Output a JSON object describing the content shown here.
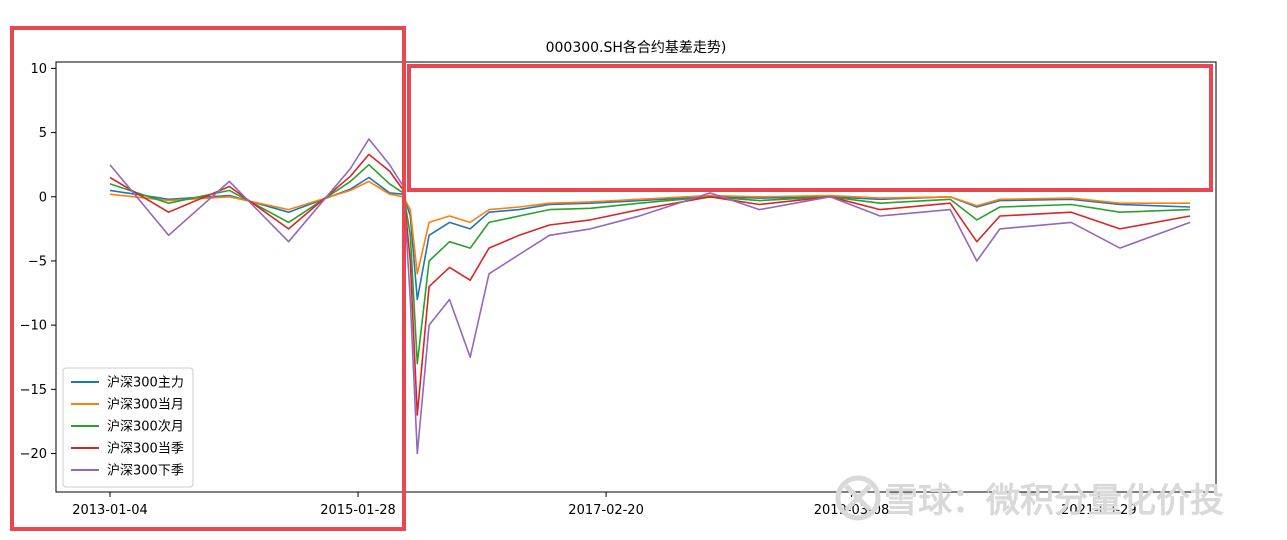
{
  "chart_data": {
    "type": "line",
    "title": "000300.SH各合约基差走势)",
    "xlabel": "",
    "ylabel": "",
    "x_ticks": [
      "2013-01-04",
      "2015-01-28",
      "2017-02-20",
      "2019-03-08",
      "2021-03-29"
    ],
    "y_ticks": [
      "10",
      "5",
      "0",
      "−5",
      "−10",
      "−15",
      "−20"
    ],
    "ylim": [
      -23,
      10.5
    ],
    "grid": false,
    "legend_position": "lower-left",
    "x_dates": [
      "2013-01-04",
      "2013-07-01",
      "2014-01-02",
      "2014-07-01",
      "2015-01-05",
      "2015-03-02",
      "2015-05-04",
      "2015-06-15",
      "2015-07-06",
      "2015-07-27",
      "2015-09-01",
      "2015-11-02",
      "2016-01-04",
      "2016-03-01",
      "2016-06-01",
      "2016-09-01",
      "2017-01-03",
      "2017-06-01",
      "2018-01-02",
      "2018-06-01",
      "2019-01-02",
      "2019-06-03",
      "2020-01-02",
      "2020-03-23",
      "2020-06-01",
      "2021-01-04",
      "2021-06-01",
      "2021-12-31"
    ],
    "series": [
      {
        "name": "沪深300主力",
        "color": "#1f77b4",
        "values": [
          0.5,
          -0.2,
          0.1,
          -1.2,
          0.6,
          1.5,
          0.3,
          0.2,
          -1.5,
          -8,
          -3,
          -2,
          -2.5,
          -1.2,
          -1,
          -0.6,
          -0.5,
          -0.3,
          0,
          -0.1,
          0,
          -0.2,
          0,
          -0.8,
          -0.3,
          -0.2,
          -0.6,
          -0.8
        ]
      },
      {
        "name": "沪深300当月",
        "color": "#ff7f0e",
        "values": [
          0.2,
          -0.3,
          0,
          -1,
          0.5,
          1.2,
          0.2,
          0,
          -1,
          -6,
          -2,
          -1.5,
          -2,
          -1,
          -0.8,
          -0.5,
          -0.4,
          -0.2,
          0.1,
          0,
          0.1,
          -0.1,
          0,
          -0.7,
          -0.2,
          -0.1,
          -0.5,
          -0.5
        ]
      },
      {
        "name": "沪深300次月",
        "color": "#2ca02c",
        "values": [
          1,
          -0.5,
          0.5,
          -2,
          1.2,
          2.5,
          1,
          0.3,
          -3,
          -13,
          -5,
          -3.5,
          -4,
          -2,
          -1.5,
          -1,
          -0.9,
          -0.5,
          0,
          -0.3,
          0,
          -0.5,
          -0.2,
          -1.8,
          -0.8,
          -0.6,
          -1.2,
          -1
        ]
      },
      {
        "name": "沪深300当季",
        "color": "#d62728",
        "values": [
          1.5,
          -1.2,
          0.8,
          -2.5,
          1.6,
          3.3,
          2,
          0.5,
          -5,
          -17,
          -7,
          -5.5,
          -6.5,
          -4,
          -3,
          -2.2,
          -1.8,
          -1,
          0,
          -0.6,
          0,
          -1,
          -0.5,
          -3.5,
          -1.5,
          -1.2,
          -2.5,
          -1.5
        ]
      },
      {
        "name": "沪深300下季",
        "color": "#9467bd",
        "values": [
          2.5,
          -3,
          1.2,
          -3.5,
          2.2,
          4.5,
          2.5,
          0.8,
          -8,
          -20,
          -10,
          -8,
          -12.5,
          -6,
          -4.5,
          -3,
          -2.5,
          -1.5,
          0.3,
          -1,
          0,
          -1.5,
          -1,
          -5,
          -2.5,
          -2,
          -4,
          -2
        ]
      }
    ],
    "colors": {
      "frame": "#000000",
      "highlight": "#e8474f",
      "watermark": "#d9d9d9"
    }
  },
  "watermark": {
    "text": "雪球：微积分量化价投"
  }
}
